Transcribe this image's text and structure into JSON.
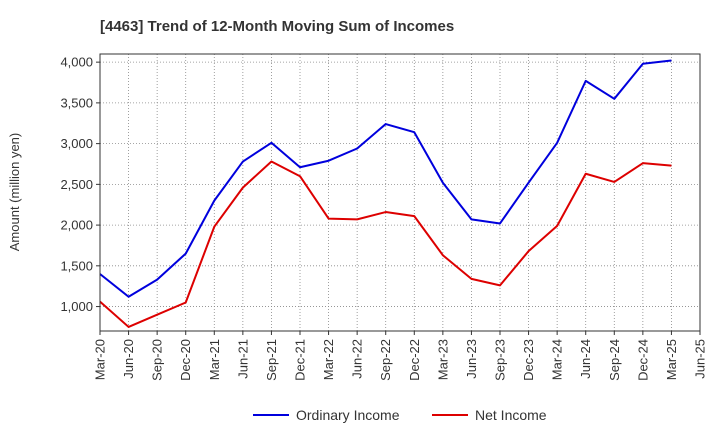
{
  "chart_data": {
    "type": "line",
    "title": "[4463]  Trend of 12-Month Moving Sum of Incomes",
    "xlabel": "",
    "ylabel": "Amount (million yen)",
    "ylim": [
      700,
      4100
    ],
    "yticks": [
      1000,
      1500,
      2000,
      2500,
      3000,
      3500,
      4000
    ],
    "ytick_labels": [
      "1,000",
      "1,500",
      "2,000",
      "2,500",
      "3,000",
      "3,500",
      "4,000"
    ],
    "categories": [
      "Mar-20",
      "Jun-20",
      "Sep-20",
      "Dec-20",
      "Mar-21",
      "Jun-21",
      "Sep-21",
      "Dec-21",
      "Mar-22",
      "Jun-22",
      "Sep-22",
      "Dec-22",
      "Mar-23",
      "Jun-23",
      "Sep-23",
      "Dec-23",
      "Mar-24",
      "Jun-24",
      "Sep-24",
      "Dec-24",
      "Mar-25",
      "Jun-25"
    ],
    "grid": true,
    "legend": "bottom",
    "series": [
      {
        "name": "Ordinary Income",
        "color": "#0000dd",
        "values": [
          1400,
          1120,
          1330,
          1650,
          2300,
          2780,
          3010,
          2710,
          2790,
          2940,
          3240,
          3140,
          2520,
          2070,
          2020,
          2520,
          3010,
          3770,
          3550,
          3980,
          4020,
          null
        ]
      },
      {
        "name": "Net Income",
        "color": "#dd0000",
        "values": [
          1060,
          750,
          900,
          1050,
          1980,
          2460,
          2780,
          2600,
          2080,
          2070,
          2160,
          2110,
          1630,
          1340,
          1260,
          1680,
          1990,
          2630,
          2530,
          2760,
          2730,
          null
        ]
      }
    ]
  }
}
